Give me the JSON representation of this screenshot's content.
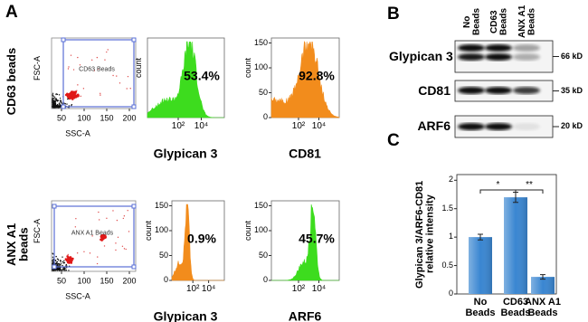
{
  "panel_a": {
    "label": "A",
    "rows": [
      {
        "name": "CD63 beads",
        "scatter": {
          "gate_label": "CD63 Beads",
          "x_label": "SSC-A",
          "y_label": "FSC-A",
          "xticks": [
            50,
            100,
            150,
            200
          ]
        },
        "histograms": [
          {
            "marker": "Glypican 3",
            "percent": "53.4%",
            "color": "#3ddc1e",
            "y_label": "count",
            "xticks": [
              "10²",
              "10⁴"
            ]
          },
          {
            "marker": "CD81",
            "percent": "92.8%",
            "color": "#f28c1c",
            "y_label": "count",
            "xticks": [
              "10²",
              "10⁴"
            ],
            "yticks": [
              150,
              100,
              50,
              0
            ]
          }
        ]
      },
      {
        "name": "ANX A1 beads",
        "scatter": {
          "gate_label": "ANX A1 Beads",
          "x_label": "SSC-A",
          "y_label": "FSC-A",
          "xticks": [
            50,
            100,
            150,
            200
          ]
        },
        "histograms": [
          {
            "marker": "Glypican 3",
            "percent": "0.9%",
            "color": "#f28c1c",
            "y_label": "count",
            "xticks": [
              "10²",
              "10⁴"
            ],
            "yticks": [
              150,
              100,
              50,
              0
            ]
          },
          {
            "marker": "ARF6",
            "percent": "45.7%",
            "color": "#3ddc1e",
            "y_label": "count",
            "xticks": [
              "10²",
              "10⁴"
            ],
            "yticks": [
              150,
              100,
              50,
              0
            ]
          }
        ]
      }
    ]
  },
  "panel_b": {
    "label": "B",
    "lanes": [
      "No Beads",
      "CD63 Beads",
      "ANX A1 Beads"
    ],
    "blots": [
      {
        "protein": "Glypican 3",
        "size": "66 kD"
      },
      {
        "protein": "CD81",
        "size": "35 kD"
      },
      {
        "protein": "ARF6",
        "size": "20 kD"
      }
    ]
  },
  "panel_c": {
    "label": "C",
    "type": "bar",
    "y_label": "Glypican 3/ARF6-CD81 relative intensity",
    "categories": [
      "No Beads",
      "CD63 Beads",
      "ANX A1 Beads"
    ],
    "values": [
      1.0,
      1.7,
      0.3
    ],
    "errors": [
      0.05,
      0.09,
      0.04
    ],
    "color": "#3a86d1",
    "ylim": [
      0,
      2.1
    ],
    "yticks": [
      0,
      0.5,
      1,
      1.5,
      2
    ],
    "significance": [
      "*",
      "**"
    ]
  }
}
